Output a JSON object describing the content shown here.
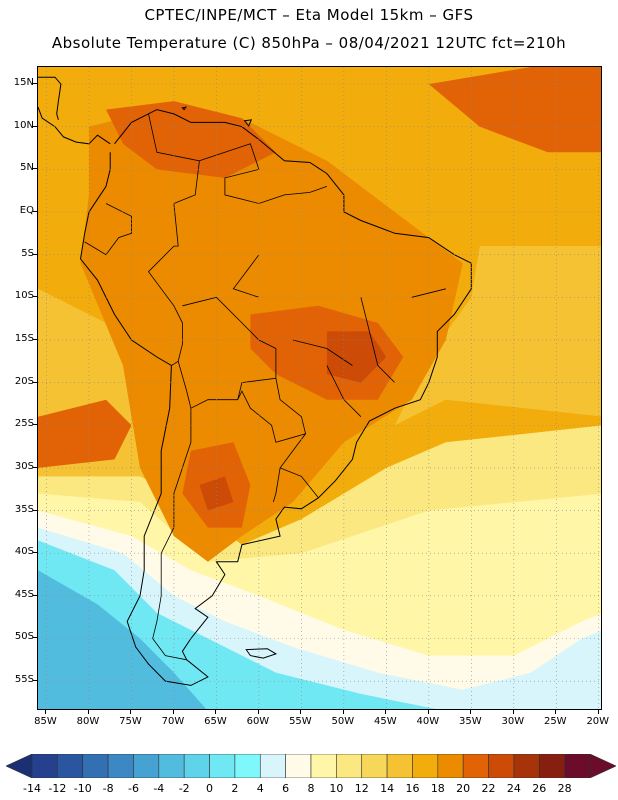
{
  "header": {
    "title_line1": "CPTEC/INPE/MCT –  Eta Model 15km – GFS",
    "title_line2": "Absolute Temperature (C) 850hPa – 08/04/2021 12UTC fct=210h"
  },
  "axes": {
    "lat_labels": [
      "15N",
      "10N",
      "5N",
      "EQ",
      "5S",
      "10S",
      "15S",
      "20S",
      "25S",
      "30S",
      "35S",
      "40S",
      "45S",
      "50S",
      "55S"
    ],
    "lon_labels": [
      "85W",
      "80W",
      "75W",
      "70W",
      "65W",
      "60W",
      "55W",
      "50W",
      "45W",
      "40W",
      "35W",
      "30W",
      "25W",
      "20W"
    ]
  },
  "colorbar": {
    "labels": [
      "-14",
      "-12",
      "-10",
      "-8",
      "-6",
      "-4",
      "-2",
      "0",
      "2",
      "4",
      "6",
      "8",
      "10",
      "12",
      "14",
      "16",
      "18",
      "20",
      "22",
      "24",
      "26",
      "28"
    ],
    "colors": [
      "#24408e",
      "#2a56a0",
      "#3370b3",
      "#3b88c4",
      "#46a2d2",
      "#52bcde",
      "#5fd3ea",
      "#6fe8f4",
      "#7ff8fc",
      "#d7f5fb",
      "#fffbe8",
      "#fff6a8",
      "#fbe880",
      "#f6d75a",
      "#f4c232",
      "#f2ac0c",
      "#ec8a00",
      "#e26306",
      "#cc4b06",
      "#a7330b",
      "#861f10",
      "#6a0c2a"
    ],
    "low_arrow_color": "#1b2f74",
    "high_arrow_color": "#6a0c2a"
  },
  "map_colors": {
    "ocean_warm": "#f4c232",
    "sea_yellow": "#fbe880",
    "pale": "#fff6a8",
    "cream": "#fffbe8",
    "ice": "#d7f5fb",
    "cyan": "#6fe8f4",
    "cyan_mid": "#52bcde",
    "cyan_deep": "#46a2d2",
    "orange": "#f2ac0c",
    "orange_dark": "#ec8a00",
    "hot": "#e26306",
    "hotter": "#cc4b06"
  }
}
